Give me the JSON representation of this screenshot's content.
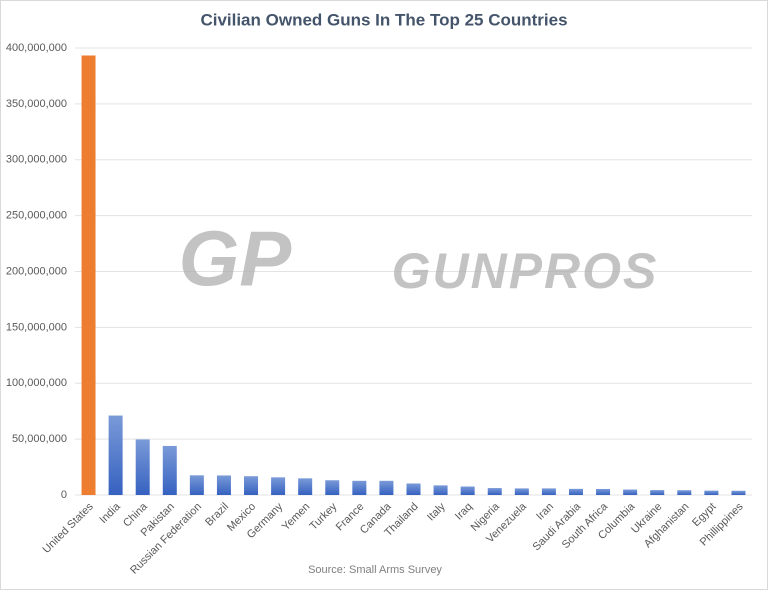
{
  "chart_data": {
    "type": "bar",
    "title": "Civilian Owned Guns In The Top 25 Countries",
    "source": "Source: Small Arms Survey",
    "watermark": "GUNPROS",
    "logo": "GP",
    "categories": [
      "United States",
      "India",
      "China",
      "Pakistan",
      "Russian Federation",
      "Brazil",
      "Mexico",
      "Germany",
      "Yemen",
      "Turkey",
      "France",
      "Canada",
      "Thailand",
      "Italy",
      "Iraq",
      "Nigeria",
      "Venezuela",
      "Iran",
      "Saudi Arabia",
      "South Africa",
      "Columbia",
      "Ukraine",
      "Afghanistan",
      "Egypt",
      "Phillippines"
    ],
    "values": [
      393300000,
      71100000,
      49700000,
      43900000,
      17600000,
      17500000,
      16800000,
      15800000,
      14900000,
      13200000,
      12700000,
      12700000,
      10300000,
      8600000,
      7600000,
      6200000,
      5900000,
      5900000,
      5500000,
      5400000,
      4900000,
      4400000,
      4300000,
      3900000,
      3800000
    ],
    "colors": [
      "#ed7d31",
      "#4472c4",
      "#4472c4",
      "#4472c4",
      "#4472c4",
      "#4472c4",
      "#4472c4",
      "#4472c4",
      "#4472c4",
      "#4472c4",
      "#4472c4",
      "#4472c4",
      "#4472c4",
      "#4472c4",
      "#4472c4",
      "#4472c4",
      "#4472c4",
      "#4472c4",
      "#4472c4",
      "#4472c4",
      "#4472c4",
      "#4472c4",
      "#4472c4",
      "#4472c4",
      "#4472c4"
    ],
    "ylim": [
      0,
      400000000
    ],
    "yticks": [
      0,
      {
        "value": 50000000,
        "label": "50,000,000"
      },
      {
        "value": 100000000,
        "label": "100,000,000"
      },
      {
        "value": 150000000,
        "label": "150,000,000"
      },
      {
        "value": 200000000,
        "label": "200,000,000"
      },
      {
        "value": 250000000,
        "label": "250,000,000"
      },
      {
        "value": 300000000,
        "label": "300,000,000"
      },
      {
        "value": 350000000,
        "label": "350,000,000"
      },
      {
        "value": 400000000,
        "label": "400,000,000"
      }
    ],
    "grid": true
  }
}
